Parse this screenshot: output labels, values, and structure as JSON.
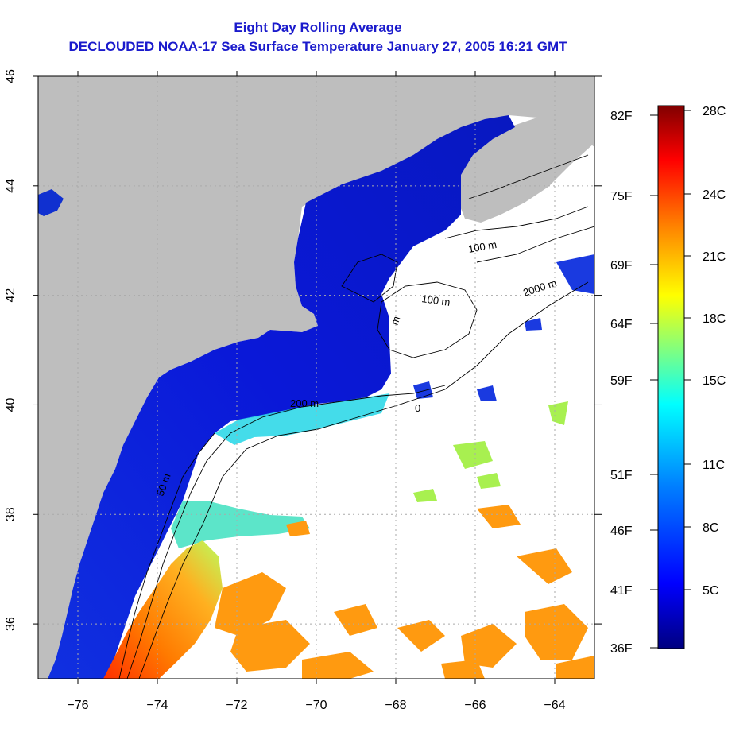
{
  "title": "Eight Day Rolling Average",
  "subtitle": "DECLOUDED NOAA-17 Sea Surface Temperature January 27, 2005 16:21 GMT",
  "map": {
    "lon_ticks": [
      "-76",
      "-74",
      "-72",
      "-70",
      "-68",
      "-66",
      "-64"
    ],
    "lat_ticks": [
      "36",
      "38",
      "40",
      "42",
      "44",
      "46"
    ],
    "lon_range": [
      -77,
      -63
    ],
    "lat_range": [
      35,
      46
    ],
    "land_color": "#bebebe",
    "contour_labels": [
      "50 m",
      "200 m",
      "100 m",
      "100 m",
      "2000 m",
      "m",
      "0"
    ]
  },
  "colorbar": {
    "celsius_labels": [
      "28C",
      "24C",
      "21C",
      "18C",
      "15C",
      "11C",
      "8C",
      "5C"
    ],
    "fahrenheit_labels": [
      "82F",
      "75F",
      "69F",
      "64F",
      "59F",
      "51F",
      "46F",
      "41F",
      "36F"
    ],
    "colors": [
      "#000080",
      "#0000ff",
      "#0080ff",
      "#00ffff",
      "#80ff80",
      "#ffff00",
      "#ff8000",
      "#ff0000",
      "#800000"
    ]
  }
}
